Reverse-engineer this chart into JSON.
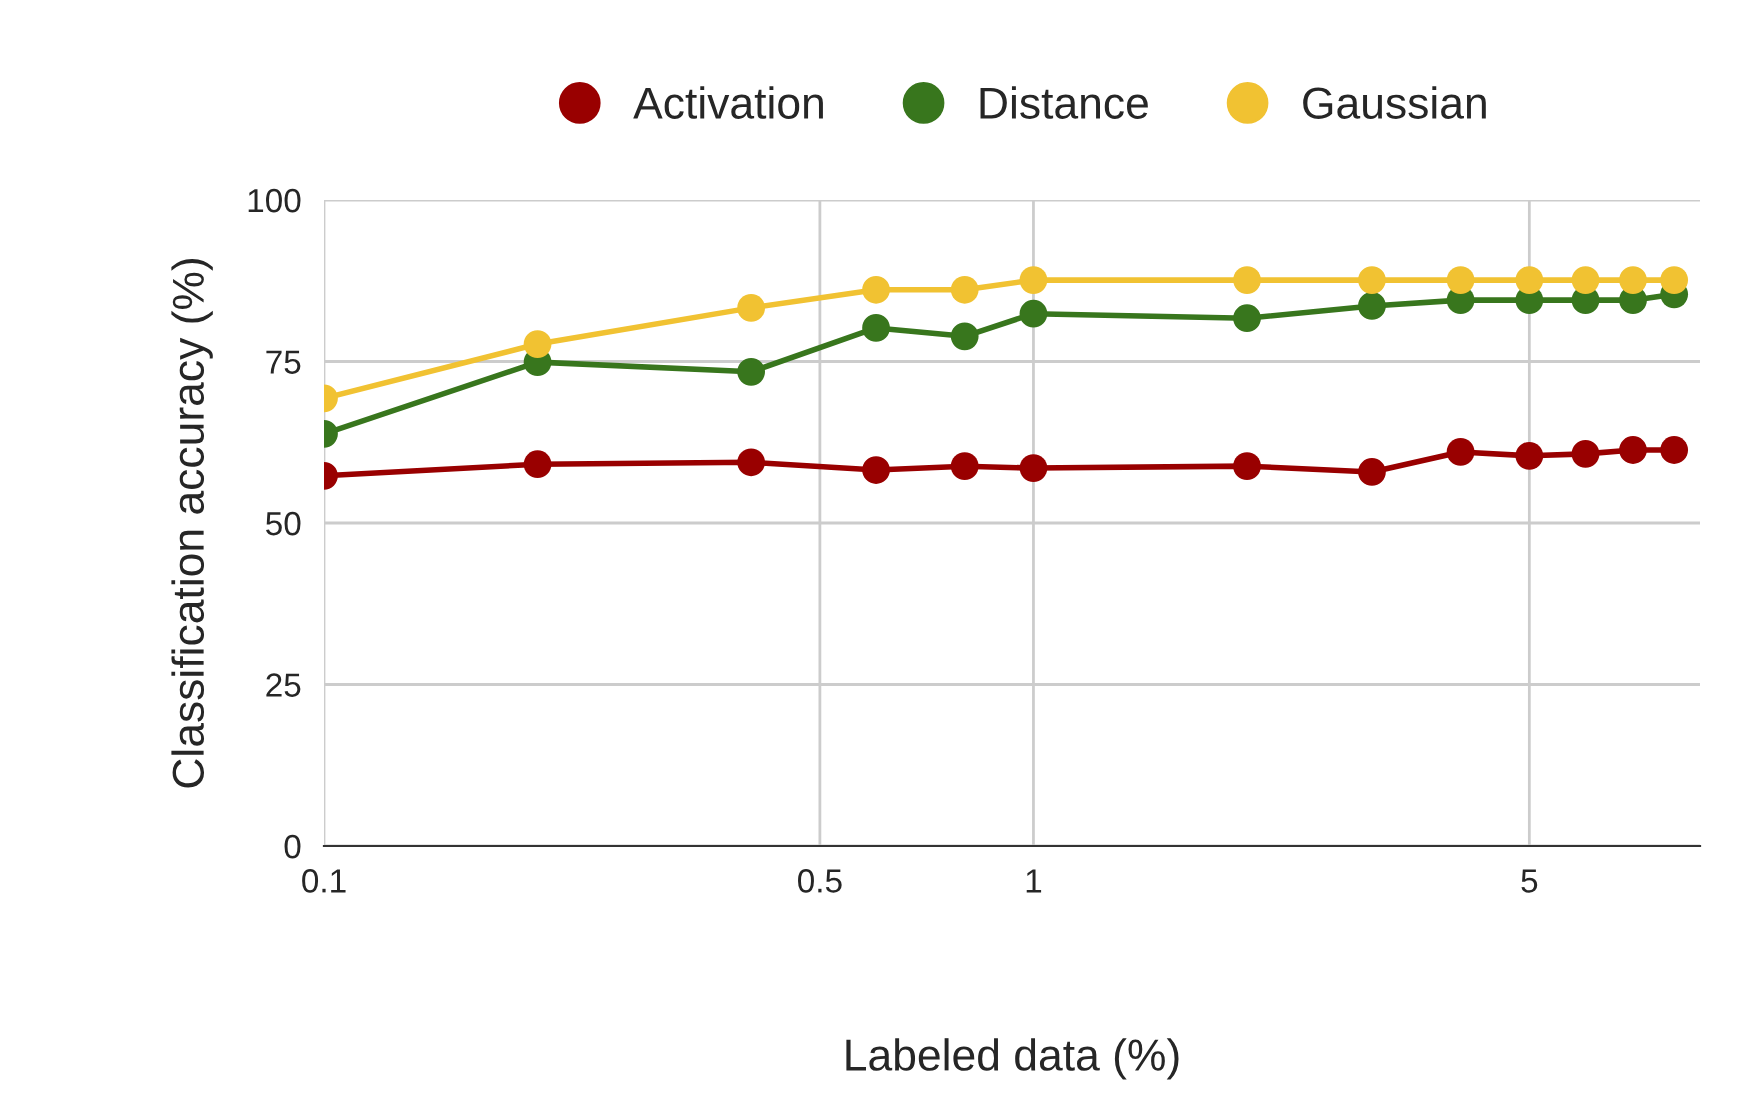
{
  "chart_data": {
    "type": "line",
    "xlabel": "Labeled data (%)",
    "ylabel": "Classification accuracy (%)",
    "x": [
      0.1,
      0.2,
      0.4,
      0.6,
      0.8,
      1,
      2,
      3,
      4,
      5,
      6,
      7,
      8
    ],
    "series": [
      {
        "name": "Activation",
        "color": "#990000",
        "values": [
          57.3,
          59.1,
          59.4,
          58.2,
          58.8,
          58.5,
          58.8,
          57.9,
          61,
          60.4,
          60.7,
          61.3,
          61.3
        ]
      },
      {
        "name": "Distance",
        "color": "#38761d",
        "values": [
          63.8,
          74.9,
          73.4,
          80.2,
          78.9,
          82.4,
          81.7,
          83.6,
          84.5,
          84.5,
          84.5,
          84.5,
          85.4
        ]
      },
      {
        "name": "Gaussian",
        "color": "#f1c232",
        "values": [
          69.3,
          77.7,
          83.3,
          86.1,
          86.1,
          87.6,
          87.6,
          87.6,
          87.6,
          87.6,
          87.6,
          87.6,
          87.6
        ]
      }
    ],
    "log": "x",
    "xlim": [
      0.1,
      8.7
    ],
    "xticks": [
      0.1,
      0.5,
      1,
      5
    ],
    "ylim": [
      0,
      100
    ],
    "yticks": [
      0,
      25,
      50,
      75,
      100
    ],
    "grid": true,
    "legend": "top",
    "marker": "circle",
    "line_style": "solid"
  }
}
